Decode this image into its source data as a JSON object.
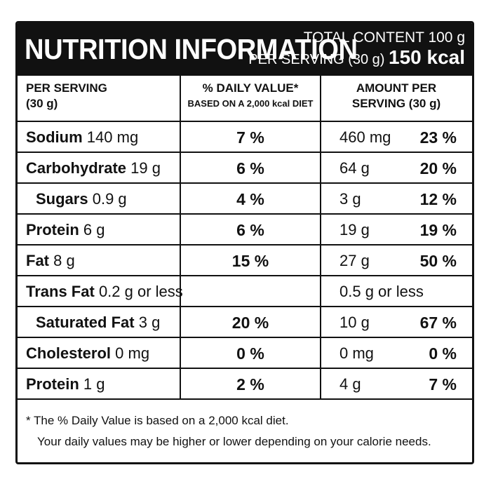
{
  "header": {
    "title": "NUTRITION INFORMATION",
    "total_content": "TOTAL CONTENT 100 g",
    "per_serving": "PER SERVING (30 g)",
    "kcal": "150 kcal"
  },
  "columns": {
    "col1_line1": "PER SERVING",
    "col1_line2": "(30 g)",
    "col2_line1": "% DAILY VALUE*",
    "col2_line2": "BASED ON A 2,000 kcal DIET",
    "col3_line1": "AMOUNT PER",
    "col3_line2": "SERVING (30 g)"
  },
  "rows": [
    {
      "name": "Sodium",
      "qty": "140 mg",
      "dv": "7 %",
      "amount": "460 mg",
      "amount_pct": "23 %",
      "indent": false
    },
    {
      "name": "Carbohydrate",
      "qty": "19 g",
      "dv": "6 %",
      "amount": "64 g",
      "amount_pct": "20 %",
      "indent": false
    },
    {
      "name": "Sugars",
      "qty": "0.9 g",
      "dv": "4 %",
      "amount": "3 g",
      "amount_pct": "12 %",
      "indent": true
    },
    {
      "name": "Protein",
      "qty": "6 g",
      "dv": "6 %",
      "amount": "19 g",
      "amount_pct": "19 %",
      "indent": false
    },
    {
      "name": "Fat",
      "qty": "8 g",
      "dv": "15 %",
      "amount": "27 g",
      "amount_pct": "50 %",
      "indent": false
    },
    {
      "name": "Trans Fat",
      "qty": "0.2 g or less",
      "dv": "",
      "amount": "0.5 g or less",
      "amount_pct": "",
      "indent": false
    },
    {
      "name": "Saturated Fat",
      "qty": "3 g",
      "dv": "20 %",
      "amount": "10 g",
      "amount_pct": "67 %",
      "indent": true
    },
    {
      "name": "Cholesterol",
      "qty": "0 mg",
      "dv": "0 %",
      "amount": "0 mg",
      "amount_pct": "0 %",
      "indent": false
    },
    {
      "name": "Protein",
      "qty": "1 g",
      "dv": "2 %",
      "amount": "4 g",
      "amount_pct": "7 %",
      "indent": false
    }
  ],
  "footer": {
    "line1": "* The % Daily Value is based on a 2,000 kcal diet.",
    "line2": "Your daily values may be higher or lower depending on your calorie needs."
  }
}
